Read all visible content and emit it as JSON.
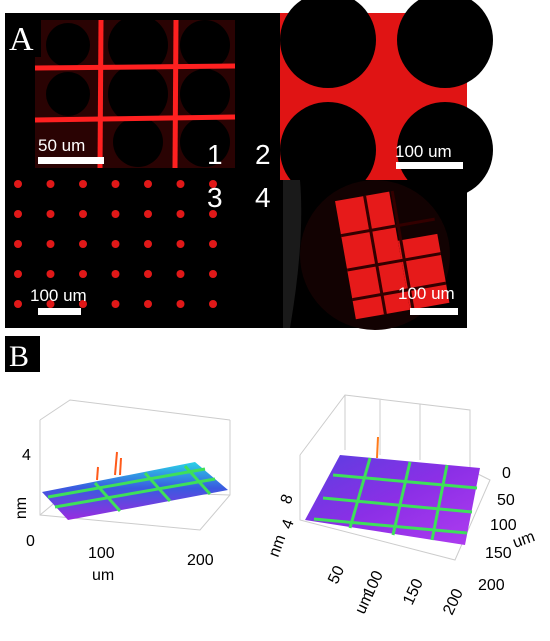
{
  "panel_a": {
    "label": "A",
    "scale_bars": [
      "50 um",
      "100 um",
      "100 um",
      "100 um"
    ],
    "quadrant_numbers": [
      "1",
      "2",
      "3",
      "4"
    ]
  },
  "panel_b": {
    "label": "B",
    "left_plot": {
      "z_label": "nm",
      "z_ticks": [
        "4"
      ],
      "x_label": "um",
      "x_ticks": [
        "0",
        "100",
        "200"
      ]
    },
    "right_plot": {
      "z_label": "nm",
      "z_ticks": [
        "8",
        "4"
      ],
      "x_label": "um",
      "x_ticks": [
        "50",
        "100",
        "150",
        "200"
      ],
      "y_label": "um",
      "y_ticks": [
        "0",
        "50",
        "100",
        "150",
        "200"
      ]
    }
  }
}
